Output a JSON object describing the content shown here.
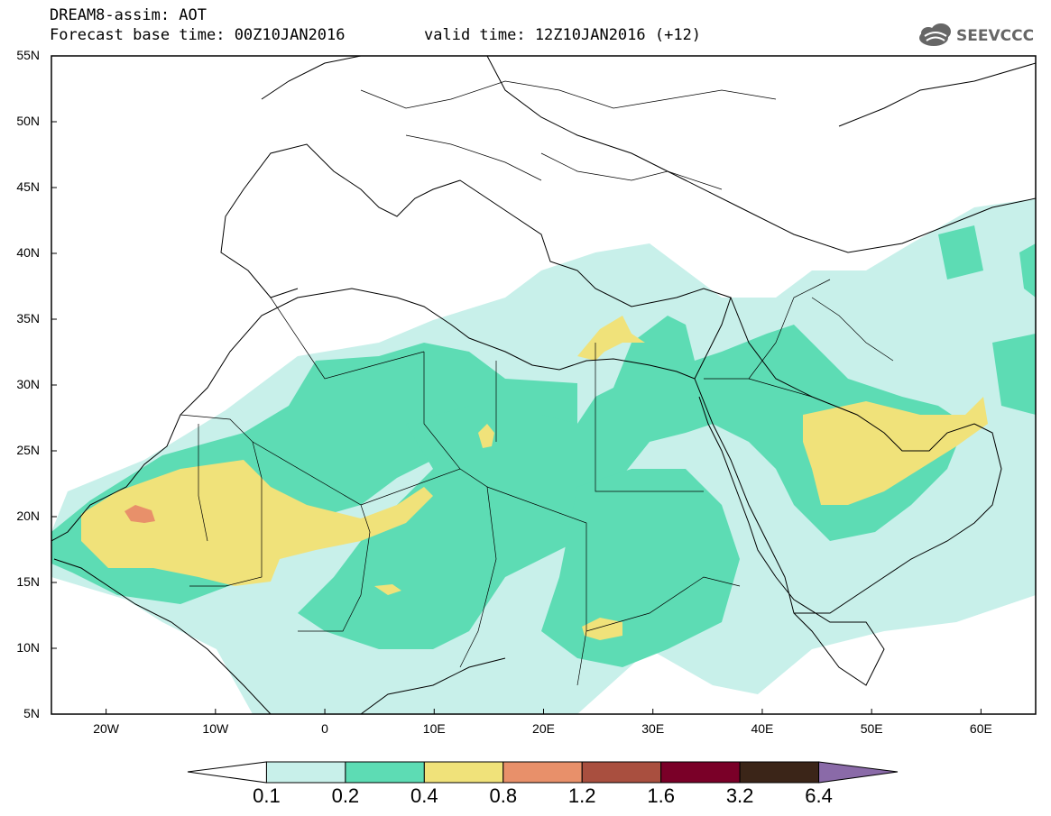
{
  "header": {
    "title": "DREAM8-assim: AOT",
    "forecast": "Forecast base time: 00Z10JAN2016",
    "valid": "valid time: 12Z10JAN2016 (+12)"
  },
  "logo": {
    "text": "SEEVCCC",
    "icon": "cloud-icon"
  },
  "map": {
    "lon_range": [
      -25,
      65
    ],
    "lat_range": [
      5,
      55
    ],
    "y_ticks": [
      "55N",
      "50N",
      "45N",
      "40N",
      "35N",
      "30N",
      "25N",
      "20N",
      "15N",
      "10N",
      "5N"
    ],
    "x_ticks": [
      "20W",
      "10W",
      "0",
      "10E",
      "20E",
      "30E",
      "40E",
      "50E",
      "60E"
    ]
  },
  "legend": {
    "labels": [
      "0.1",
      "0.2",
      "0.4",
      "0.8",
      "1.2",
      "1.6",
      "3.2",
      "6.4"
    ],
    "colors": [
      "#ffffff",
      "#c8f0ea",
      "#5ddcb4",
      "#f0e27a",
      "#e8906a",
      "#a94f3f",
      "#7a0028",
      "#3b2518",
      "#8a6aa8"
    ]
  }
}
